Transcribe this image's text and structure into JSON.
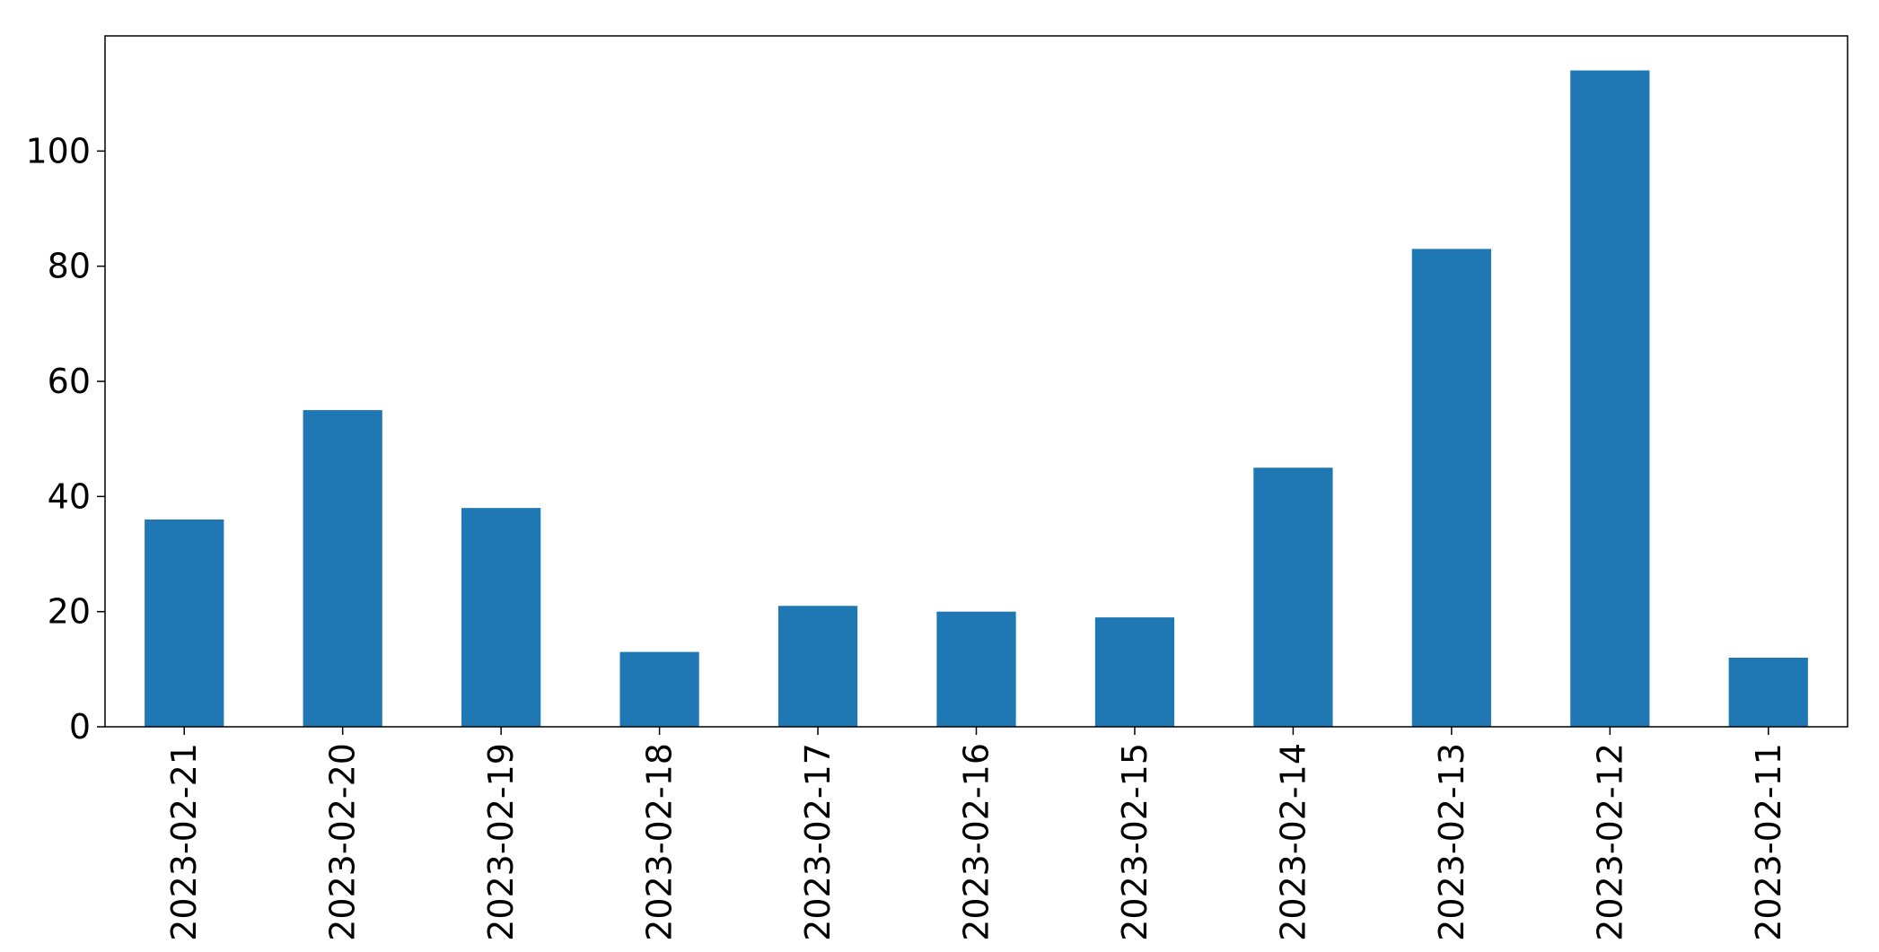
{
  "chart_data": {
    "type": "bar",
    "categories": [
      "2023-02-21",
      "2023-02-20",
      "2023-02-19",
      "2023-02-18",
      "2023-02-17",
      "2023-02-16",
      "2023-02-15",
      "2023-02-14",
      "2023-02-13",
      "2023-02-12",
      "2023-02-11"
    ],
    "values": [
      36,
      55,
      38,
      13,
      21,
      20,
      19,
      45,
      83,
      114,
      12
    ],
    "title": "",
    "xlabel": "",
    "ylabel": "",
    "ylim": [
      0,
      120
    ],
    "yticks": [
      0,
      20,
      40,
      60,
      80,
      100
    ],
    "grid": false,
    "legend": "none",
    "bar_color": "#1f77b4"
  }
}
